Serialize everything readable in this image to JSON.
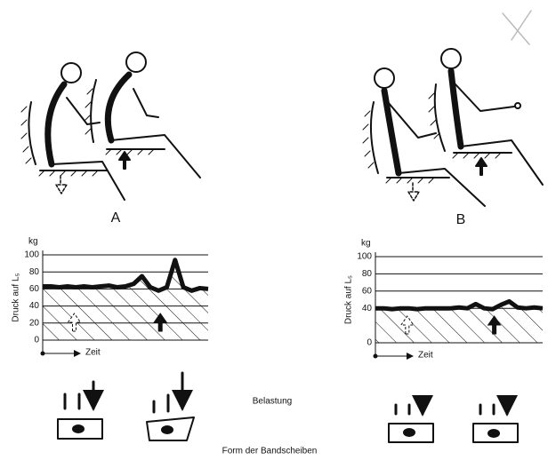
{
  "chart_data": [
    {
      "type": "line",
      "y_unit": "kg",
      "y_label": "Druck auf L₅",
      "x_label": "Zeit",
      "ylim": [
        0,
        100
      ],
      "yticks": [
        0,
        20,
        40,
        60,
        80,
        100
      ],
      "grid": true,
      "color": "#111111",
      "values": [
        63,
        63,
        62,
        63,
        62,
        63,
        62,
        63,
        64,
        62,
        63,
        66,
        75,
        62,
        58,
        62,
        94,
        62,
        58,
        61,
        60
      ]
    },
    {
      "type": "line",
      "y_unit": "kg",
      "y_label": "Druck auf L₅",
      "x_label": "Zeit",
      "ylim": [
        0,
        100
      ],
      "yticks": [
        0,
        40,
        60,
        80,
        100
      ],
      "grid": true,
      "color": "#111111",
      "values": [
        40,
        40,
        39,
        40,
        40,
        39,
        40,
        40,
        40,
        40,
        41,
        40,
        45,
        40,
        39,
        44,
        48,
        41,
        40,
        41,
        40
      ]
    }
  ],
  "figure": {
    "panel_labels": [
      "A",
      "B"
    ],
    "load_caption": "Belastung",
    "disc_caption": "Form der Bandscheiben"
  }
}
